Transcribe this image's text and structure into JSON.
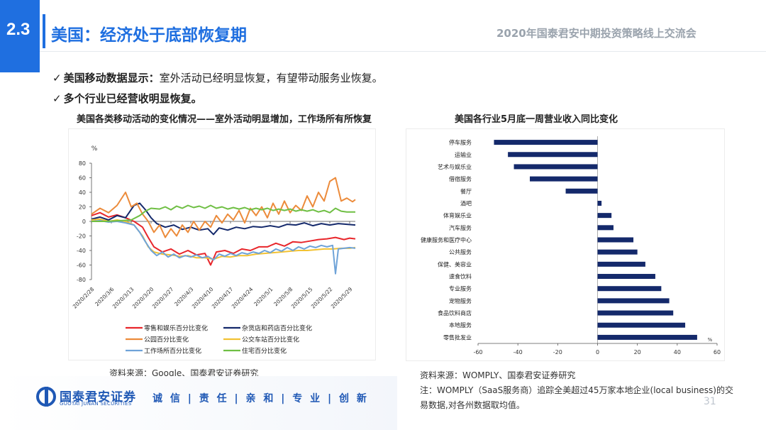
{
  "header": {
    "section_number": "2.3",
    "title": "美国：经济处于底部恢复期",
    "right_title": "2020年国泰君安中期投资策略线上交流会"
  },
  "bullets": {
    "b1_bold": "美国移动数据显示：",
    "b1_rest": "室外活动已经明显恢复，有望带动服务业恢复。",
    "b2": "多个行业已经营收明显恢复。",
    "check": "✓"
  },
  "left_chart_title": "美国各类移动活动的变化情况——室外活动明显增加，工作场所有所恢复",
  "right_chart_title": "美国各行业5月底一周营业收入同比变化",
  "sources": {
    "left": "资料来源：Google、国泰君安证券研究",
    "right": "资料来源：WOMPLY、国泰君安证券研究",
    "note": "注：WOMPLY（SaaS服务商）追踪全美超过45万家本地企业(local business)的交易数据,对各州数据取均值。"
  },
  "footer": {
    "logo_cn": "国泰君安证券",
    "logo_en": "GUOTAI JUNAN SECURITIES",
    "slogan": "诚 信 | 责 任 | 亲 和 | 专 业 | 创 新",
    "page_number": "31"
  },
  "chart_data": [
    {
      "type": "line",
      "title": "美国各类移动活动的变化情况——室外活动明显增加，工作场所有所恢复",
      "ylabel": "%",
      "ylim": [
        -80,
        80
      ],
      "yticks": [
        80,
        60,
        40,
        20,
        0,
        -20,
        -40,
        -60,
        -80
      ],
      "x_start": "2020/2/28",
      "x_end": "2020/5/31",
      "xticks": [
        "2020/2/28",
        "2020/3/6",
        "2020/3/13",
        "2020/3/20",
        "2020/3/27",
        "2020/4/3",
        "2020/4/10",
        "2020/4/17",
        "2020/4/24",
        "2020/5/1",
        "2020/5/8",
        "2020/5/15",
        "2020/5/22",
        "2020/5/29"
      ],
      "legend_position": "bottom",
      "series": [
        {
          "name": "零售和娱乐百分比变化",
          "color": "#e8262b",
          "points": [
            [
              0,
              8
            ],
            [
              3,
              12
            ],
            [
              6,
              6
            ],
            [
              9,
              9
            ],
            [
              12,
              5
            ],
            [
              15,
              0
            ],
            [
              18,
              -8
            ],
            [
              20,
              -22
            ],
            [
              22,
              -35
            ],
            [
              25,
              -42
            ],
            [
              28,
              -38
            ],
            [
              31,
              -45
            ],
            [
              34,
              -40
            ],
            [
              37,
              -46
            ],
            [
              40,
              -44
            ],
            [
              42,
              -60
            ],
            [
              44,
              -42
            ],
            [
              47,
              -40
            ],
            [
              50,
              -44
            ],
            [
              53,
              -38
            ],
            [
              56,
              -40
            ],
            [
              59,
              -35
            ],
            [
              62,
              -35
            ],
            [
              65,
              -30
            ],
            [
              68,
              -34
            ],
            [
              71,
              -28
            ],
            [
              74,
              -29
            ],
            [
              77,
              -27
            ],
            [
              80,
              -25
            ],
            [
              83,
              -24
            ],
            [
              86,
              -22
            ],
            [
              89,
              -25
            ],
            [
              91,
              -23
            ],
            [
              93,
              -24
            ]
          ]
        },
        {
          "name": "杂货店和药店百分比变化",
          "color": "#14296b",
          "points": [
            [
              0,
              3
            ],
            [
              3,
              6
            ],
            [
              6,
              2
            ],
            [
              9,
              8
            ],
            [
              12,
              5
            ],
            [
              15,
              22
            ],
            [
              17,
              25
            ],
            [
              19,
              16
            ],
            [
              21,
              5
            ],
            [
              23,
              -3
            ],
            [
              26,
              -8
            ],
            [
              29,
              -5
            ],
            [
              32,
              -11
            ],
            [
              35,
              -8
            ],
            [
              38,
              -12
            ],
            [
              41,
              -10
            ],
            [
              43,
              -18
            ],
            [
              45,
              -9
            ],
            [
              48,
              -12
            ],
            [
              51,
              -8
            ],
            [
              54,
              -10
            ],
            [
              57,
              -7
            ],
            [
              60,
              -8
            ],
            [
              63,
              -6
            ],
            [
              66,
              -8
            ],
            [
              69,
              -4
            ],
            [
              72,
              -5
            ],
            [
              75,
              -2
            ],
            [
              78,
              -6
            ],
            [
              81,
              -3
            ],
            [
              84,
              -5
            ],
            [
              87,
              -3
            ],
            [
              90,
              -4
            ],
            [
              93,
              -5
            ]
          ]
        },
        {
          "name": "公园百分比变化",
          "color": "#ec8b3b",
          "points": [
            [
              0,
              10
            ],
            [
              3,
              18
            ],
            [
              6,
              12
            ],
            [
              9,
              22
            ],
            [
              12,
              40
            ],
            [
              14,
              20
            ],
            [
              16,
              25
            ],
            [
              18,
              10
            ],
            [
              20,
              0
            ],
            [
              22,
              -15
            ],
            [
              24,
              -5
            ],
            [
              26,
              -22
            ],
            [
              28,
              -10
            ],
            [
              30,
              -20
            ],
            [
              32,
              -5
            ],
            [
              34,
              -15
            ],
            [
              36,
              0
            ],
            [
              38,
              -12
            ],
            [
              40,
              0
            ],
            [
              42,
              -8
            ],
            [
              44,
              8
            ],
            [
              46,
              -2
            ],
            [
              48,
              10
            ],
            [
              50,
              2
            ],
            [
              52,
              15
            ],
            [
              54,
              -2
            ],
            [
              56,
              18
            ],
            [
              58,
              8
            ],
            [
              60,
              20
            ],
            [
              62,
              5
            ],
            [
              64,
              25
            ],
            [
              66,
              10
            ],
            [
              68,
              28
            ],
            [
              70,
              12
            ],
            [
              72,
              22
            ],
            [
              74,
              15
            ],
            [
              76,
              35
            ],
            [
              78,
              20
            ],
            [
              80,
              40
            ],
            [
              82,
              28
            ],
            [
              84,
              55
            ],
            [
              86,
              60
            ],
            [
              88,
              28
            ],
            [
              90,
              32
            ],
            [
              92,
              27
            ],
            [
              93,
              30
            ]
          ]
        },
        {
          "name": "公交车站百分比变化",
          "color": "#f2c233",
          "points": [
            [
              0,
              2
            ],
            [
              3,
              3
            ],
            [
              6,
              0
            ],
            [
              9,
              2
            ],
            [
              12,
              0
            ],
            [
              15,
              -5
            ],
            [
              18,
              -20
            ],
            [
              20,
              -35
            ],
            [
              22,
              -42
            ],
            [
              25,
              -45
            ],
            [
              28,
              -46
            ],
            [
              31,
              -48
            ],
            [
              34,
              -47
            ],
            [
              37,
              -50
            ],
            [
              40,
              -50
            ],
            [
              43,
              -52
            ],
            [
              46,
              -48
            ],
            [
              49,
              -49
            ],
            [
              52,
              -47
            ],
            [
              55,
              -47
            ],
            [
              58,
              -45
            ],
            [
              61,
              -44
            ],
            [
              64,
              -43
            ],
            [
              67,
              -42
            ],
            [
              70,
              -41
            ],
            [
              73,
              -40
            ],
            [
              76,
              -40
            ],
            [
              79,
              -39
            ],
            [
              82,
              -38
            ],
            [
              85,
              -38
            ],
            [
              88,
              -37
            ],
            [
              91,
              -37
            ],
            [
              93,
              -36
            ]
          ]
        },
        {
          "name": "工作场所百分比变化",
          "color": "#6fa3d8",
          "points": [
            [
              0,
              0
            ],
            [
              3,
              1
            ],
            [
              6,
              -1
            ],
            [
              9,
              0
            ],
            [
              12,
              -2
            ],
            [
              15,
              -5
            ],
            [
              17,
              -15
            ],
            [
              19,
              -28
            ],
            [
              21,
              -40
            ],
            [
              23,
              -47
            ],
            [
              25,
              -42
            ],
            [
              27,
              -49
            ],
            [
              29,
              -45
            ],
            [
              31,
              -50
            ],
            [
              33,
              -47
            ],
            [
              35,
              -49
            ],
            [
              37,
              -46
            ],
            [
              39,
              -50
            ],
            [
              41,
              -48
            ],
            [
              43,
              -53
            ],
            [
              45,
              -45
            ],
            [
              47,
              -48
            ],
            [
              49,
              -44
            ],
            [
              51,
              -47
            ],
            [
              53,
              -43
            ],
            [
              55,
              -45
            ],
            [
              57,
              -42
            ],
            [
              59,
              -44
            ],
            [
              61,
              -40
            ],
            [
              63,
              -43
            ],
            [
              65,
              -38
            ],
            [
              67,
              -41
            ],
            [
              69,
              -36
            ],
            [
              71,
              -40
            ],
            [
              73,
              -35
            ],
            [
              75,
              -38
            ],
            [
              77,
              -34
            ],
            [
              79,
              -36
            ],
            [
              81,
              -33
            ],
            [
              83,
              -35
            ],
            [
              85,
              -33
            ],
            [
              86,
              -72
            ],
            [
              87,
              -38
            ],
            [
              89,
              -37
            ],
            [
              91,
              -36
            ],
            [
              93,
              -37
            ]
          ]
        },
        {
          "name": "住宅百分比变化",
          "color": "#6fbf44",
          "points": [
            [
              0,
              0
            ],
            [
              5,
              0
            ],
            [
              10,
              1
            ],
            [
              14,
              2
            ],
            [
              17,
              8
            ],
            [
              19,
              14
            ],
            [
              21,
              18
            ],
            [
              24,
              17
            ],
            [
              26,
              20
            ],
            [
              28,
              16
            ],
            [
              30,
              21
            ],
            [
              32,
              18
            ],
            [
              34,
              22
            ],
            [
              36,
              19
            ],
            [
              38,
              21
            ],
            [
              40,
              18
            ],
            [
              42,
              22
            ],
            [
              44,
              18
            ],
            [
              46,
              20
            ],
            [
              48,
              17
            ],
            [
              50,
              19
            ],
            [
              52,
              17
            ],
            [
              54,
              19
            ],
            [
              56,
              16
            ],
            [
              58,
              18
            ],
            [
              60,
              16
            ],
            [
              62,
              18
            ],
            [
              64,
              15
            ],
            [
              66,
              17
            ],
            [
              68,
              15
            ],
            [
              70,
              17
            ],
            [
              72,
              14
            ],
            [
              74,
              16
            ],
            [
              76,
              14
            ],
            [
              78,
              16
            ],
            [
              80,
              13
            ],
            [
              82,
              15
            ],
            [
              84,
              12
            ],
            [
              86,
              18
            ],
            [
              88,
              14
            ],
            [
              90,
              13
            ],
            [
              93,
              13
            ]
          ]
        }
      ]
    },
    {
      "type": "bar",
      "orientation": "horizontal",
      "title": "美国各行业5月底一周营业收入同比变化",
      "xlabel": "%",
      "xlim": [
        -60,
        60
      ],
      "xticks": [
        -60,
        -40,
        -20,
        0,
        20,
        40,
        60
      ],
      "color": "#14296b",
      "categories": [
        "停车服务",
        "运输业",
        "艺术与娱乐业",
        "借宿服务",
        "餐厅",
        "酒吧",
        "体育娱乐业",
        "汽车服务",
        "健康服务和医疗中心",
        "公共服务",
        "保健、美容业",
        "速食饮料",
        "专业服务",
        "宠物服务",
        "食品饮料商店",
        "本地服务",
        "零售批发业"
      ],
      "values": [
        -52,
        -45,
        -42,
        -34,
        -16,
        2,
        7,
        8,
        18,
        20,
        24,
        29,
        32,
        36,
        38,
        44,
        50
      ]
    }
  ]
}
